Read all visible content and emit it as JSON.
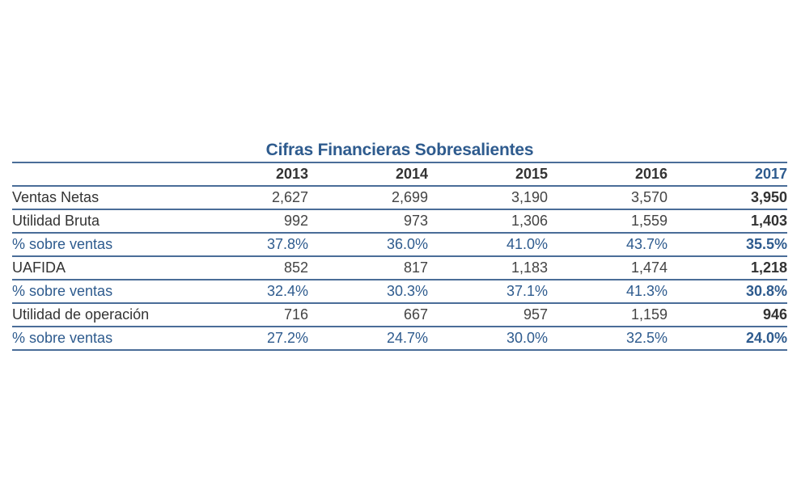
{
  "title": "Cifras Financieras Sobresalientes",
  "years": [
    "2013",
    "2014",
    "2015",
    "2016",
    "2017"
  ],
  "rows": [
    {
      "label": "Ventas Netas",
      "values": [
        "2,627",
        "2,699",
        "3,190",
        "3,570",
        "3,950"
      ],
      "kind": "value"
    },
    {
      "label": "Utilidad Bruta",
      "values": [
        "992",
        "973",
        "1,306",
        "1,559",
        "1,403"
      ],
      "kind": "value"
    },
    {
      "label": "% sobre ventas",
      "values": [
        "37.8%",
        "36.0%",
        "41.0%",
        "43.7%",
        "35.5%"
      ],
      "kind": "pct"
    },
    {
      "label": "UAFIDA",
      "values": [
        "852",
        "817",
        "1,183",
        "1,474",
        "1,218"
      ],
      "kind": "value"
    },
    {
      "label": "% sobre ventas",
      "values": [
        "32.4%",
        "30.3%",
        "37.1%",
        "41.3%",
        "30.8%"
      ],
      "kind": "pct"
    },
    {
      "label": "Utilidad de operación",
      "values": [
        "716",
        "667",
        "957",
        "1,159",
        "946"
      ],
      "kind": "value"
    },
    {
      "label": "% sobre ventas",
      "values": [
        "27.2%",
        "24.7%",
        "30.0%",
        "32.5%",
        "24.0%"
      ],
      "kind": "pct"
    }
  ],
  "colors": {
    "accent": "#2e5b8e",
    "rule": "#4a6d98",
    "text": "#333333"
  }
}
